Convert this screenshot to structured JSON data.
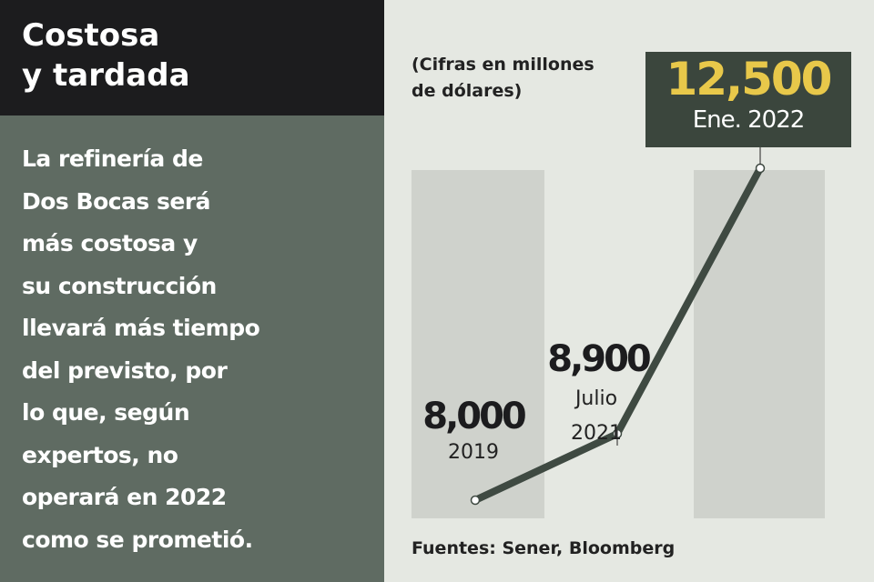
{
  "panel": {
    "title": [
      "Costosa",
      "y tardada"
    ],
    "body": [
      "La refinería de",
      "Dos Bocas será",
      "más costosa y",
      "su construcción",
      "llevará más tiempo",
      "del previsto, por",
      "lo que, según",
      "expertos, no",
      "operará en 2022",
      "como se prometió."
    ]
  },
  "chart_data": {
    "type": "line",
    "subtitle": [
      "(Cifras en millones",
      "de dólares)"
    ],
    "categories": [
      "2019",
      "Julio 2021",
      "Ene. 2022"
    ],
    "values": [
      8000,
      8900,
      12500
    ],
    "value_labels": [
      "8,000",
      "8,900",
      "12,500"
    ],
    "color": "#3f4a42",
    "source": "Fuentes: Sener, Bloomberg"
  }
}
